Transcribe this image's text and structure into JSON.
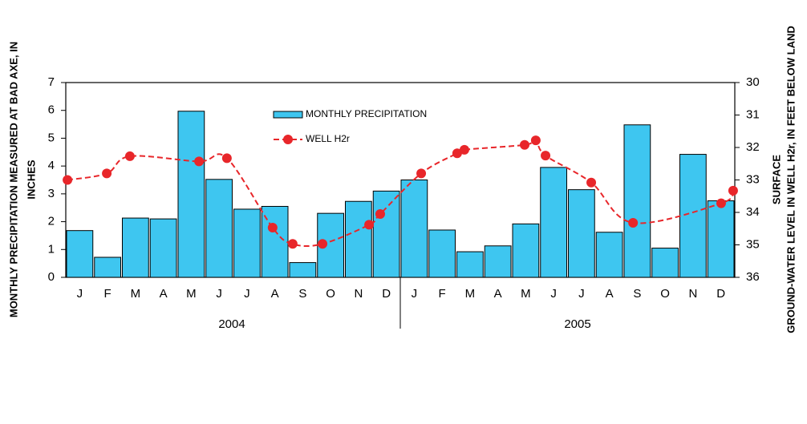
{
  "chart_data": {
    "type": "bar_line",
    "ylabel": [
      "MONTHLY PRECIPITATION MEASURED AT BAD AXE, IN",
      "INCHES"
    ],
    "y2label": [
      "GROUND-WATER LEVEL IN WELL H2r, IN FEET BELOW LAND",
      "SURFACE"
    ],
    "categories": [
      "J",
      "F",
      "M",
      "A",
      "M",
      "J",
      "J",
      "A",
      "S",
      "O",
      "N",
      "D",
      "J",
      "F",
      "M",
      "A",
      "M",
      "J",
      "J",
      "A",
      "S",
      "O",
      "N",
      "D"
    ],
    "x_group_labels": [
      "2004",
      "2005"
    ],
    "ylim": [
      0,
      7
    ],
    "yticks": [
      0,
      1,
      2,
      3,
      4,
      5,
      6,
      7
    ],
    "y2lim": [
      36,
      30
    ],
    "y2ticks": [
      30,
      31,
      32,
      33,
      34,
      35,
      36
    ],
    "series": [
      {
        "name": "MONTHLY PRECIPITATION",
        "type": "bar",
        "color": "#3ec6f0",
        "values": [
          1.68,
          0.72,
          2.13,
          2.1,
          5.97,
          3.52,
          2.45,
          2.55,
          0.53,
          2.3,
          2.73,
          3.1,
          3.5,
          1.7,
          0.92,
          1.13,
          1.92,
          3.95,
          3.15,
          1.62,
          5.48,
          1.05,
          4.42,
          2.75
        ]
      },
      {
        "name": "WELL H2r",
        "type": "line",
        "axis": "y2",
        "color": "#e8262a",
        "x": [
          0.06,
          1.47,
          2.3,
          4.78,
          5.78,
          7.42,
          8.14,
          9.21,
          10.88,
          11.28,
          12.75,
          14.04,
          14.3,
          16.46,
          16.86,
          17.21,
          18.85,
          20.35,
          23.51,
          23.94
        ],
        "values": [
          33.0,
          32.8,
          32.27,
          32.43,
          32.33,
          34.47,
          34.97,
          34.97,
          34.38,
          34.05,
          32.8,
          32.18,
          32.07,
          31.92,
          31.78,
          32.25,
          33.08,
          34.32,
          33.72,
          33.33
        ]
      }
    ]
  }
}
